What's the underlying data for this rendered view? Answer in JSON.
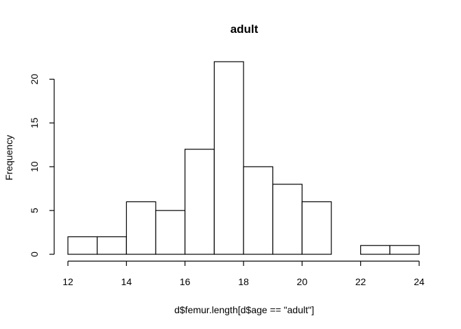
{
  "chart_data": {
    "type": "bar",
    "title": "adult",
    "xlabel": "d$femur.length[d$age == \"adult\"]",
    "ylabel": "Frequency",
    "bins": [
      {
        "start": 12,
        "end": 13,
        "value": 2
      },
      {
        "start": 13,
        "end": 14,
        "value": 2
      },
      {
        "start": 14,
        "end": 15,
        "value": 6
      },
      {
        "start": 15,
        "end": 16,
        "value": 5
      },
      {
        "start": 16,
        "end": 17,
        "value": 12
      },
      {
        "start": 17,
        "end": 18,
        "value": 22
      },
      {
        "start": 18,
        "end": 19,
        "value": 10
      },
      {
        "start": 19,
        "end": 20,
        "value": 8
      },
      {
        "start": 20,
        "end": 21,
        "value": 6
      },
      {
        "start": 21,
        "end": 22,
        "value": 0
      },
      {
        "start": 22,
        "end": 23,
        "value": 1
      },
      {
        "start": 23,
        "end": 24,
        "value": 1
      }
    ],
    "xlim": [
      12,
      24
    ],
    "ylim": [
      0,
      22
    ],
    "xticks": [
      12,
      14,
      16,
      18,
      20,
      22,
      24
    ],
    "yticks": [
      0,
      5,
      10,
      15,
      20
    ],
    "grid": false
  }
}
